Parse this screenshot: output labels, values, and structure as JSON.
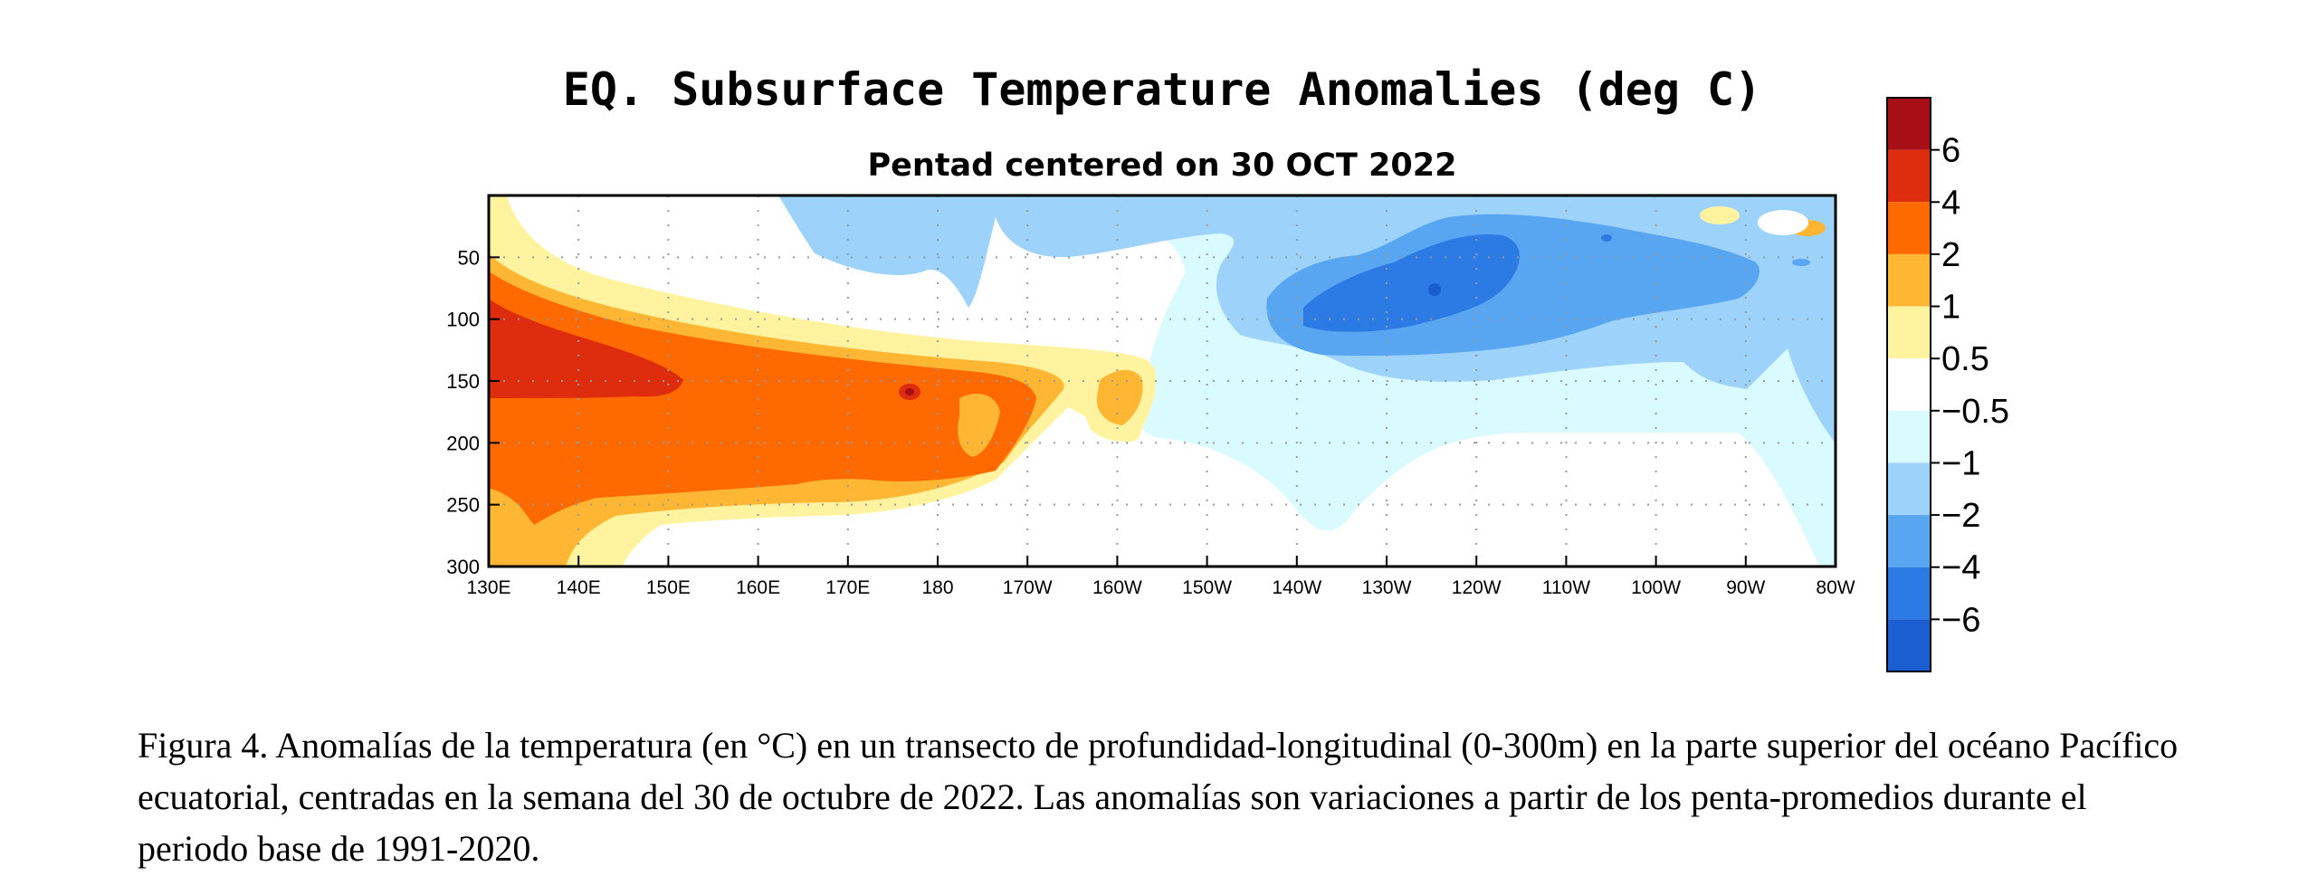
{
  "chart_data": {
    "type": "heatmap",
    "title": "EQ. Subsurface Temperature Anomalies (deg C)",
    "subtitle": "Pentad centered on 30 OCT 2022",
    "x_ticks": [
      "130E",
      "140E",
      "150E",
      "160E",
      "170E",
      "180",
      "170W",
      "160W",
      "150W",
      "140W",
      "130W",
      "120W",
      "110W",
      "100W",
      "90W",
      "80W"
    ],
    "y_ticks": [
      "50",
      "100",
      "150",
      "200",
      "250",
      "300"
    ],
    "xlim": [
      "130E",
      "80W"
    ],
    "ylim": [
      0,
      300
    ],
    "y_inverted": true,
    "grid": true,
    "legend": "colorbar-right",
    "colorbar": {
      "labels": [
        "6",
        "4",
        "2",
        "1",
        "0.5",
        "−0.5",
        "−1",
        "−2",
        "−4",
        "−6"
      ],
      "colors": [
        "#a50f15",
        "#de2d0e",
        "#ff6a00",
        "#ffb733",
        "#fff3a0",
        "#ffffff",
        "#d9fbff",
        "#9dd3fa",
        "#58a5f2",
        "#2c7be5",
        "#1a5ed1"
      ]
    },
    "anomaly_regions": [
      {
        "level": 2,
        "description": "warm tongue",
        "lon_range": [
          "130E",
          "170W"
        ],
        "depth_range": [
          60,
          260
        ]
      },
      {
        "level": 4,
        "description": "warm core",
        "lon_range": [
          "130E",
          "150E"
        ],
        "depth_range": [
          100,
          170
        ]
      },
      {
        "level": -2,
        "description": "cold core",
        "lon_range": [
          "150W",
          "95W"
        ],
        "depth_range": [
          20,
          170
        ]
      },
      {
        "level": -4,
        "description": "cold center",
        "lon_range": [
          "138W",
          "118W"
        ],
        "depth_range": [
          60,
          115
        ]
      }
    ]
  },
  "caption": "Figura 4. Anomalías de la temperatura (en °C) en un transecto de profundidad-longitudinal (0-300m) en la parte superior del océano Pacífico ecuatorial, centradas en la semana del 30 de octubre de 2022. Las anomalías son variaciones a partir de los penta-promedios durante el periodo base de 1991-2020."
}
